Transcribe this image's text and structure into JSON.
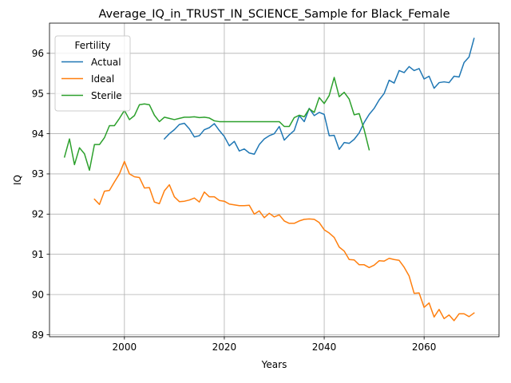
{
  "chart_data": {
    "type": "line",
    "title": "Average_IQ_in_TRUST_IN_SCIENCE_Sample for Black_Female",
    "xlabel": "Years",
    "ylabel": "IQ",
    "xlim": [
      1985,
      2075
    ],
    "ylim": [
      88.95,
      96.75
    ],
    "xticks": [
      2000,
      2020,
      2040,
      2060
    ],
    "yticks": [
      89,
      90,
      91,
      92,
      93,
      94,
      95,
      96
    ],
    "grid": true,
    "legend": {
      "title": "Fertility",
      "placement": "top-left"
    },
    "series": [
      {
        "name": "Actual",
        "color": "#1f77b4",
        "x": [
          2008,
          2009,
          2010,
          2011,
          2012,
          2013,
          2014,
          2015,
          2016,
          2017,
          2018,
          2019,
          2020,
          2021,
          2022,
          2023,
          2024,
          2025,
          2026,
          2027,
          2028,
          2029,
          2030,
          2031,
          2032,
          2033,
          2034,
          2035,
          2036,
          2037,
          2038,
          2039,
          2040,
          2041,
          2042,
          2043,
          2044,
          2045,
          2046,
          2047,
          2048,
          2049,
          2050,
          2051,
          2052,
          2053,
          2054,
          2055,
          2056,
          2057,
          2058,
          2059,
          2060,
          2061,
          2062,
          2063,
          2064,
          2065,
          2066,
          2067,
          2068,
          2069,
          2070
        ],
        "values": [
          93.87,
          94.0,
          94.1,
          94.23,
          94.26,
          94.12,
          93.92,
          93.95,
          94.1,
          94.15,
          94.25,
          94.08,
          93.93,
          93.7,
          93.81,
          93.57,
          93.62,
          93.52,
          93.49,
          93.73,
          93.87,
          93.95,
          94.0,
          94.18,
          93.84,
          93.97,
          94.08,
          94.45,
          94.3,
          94.63,
          94.45,
          94.53,
          94.48,
          93.95,
          93.96,
          93.61,
          93.78,
          93.76,
          93.86,
          94.02,
          94.28,
          94.48,
          94.63,
          94.84,
          95.0,
          95.33,
          95.26,
          95.57,
          95.52,
          95.67,
          95.57,
          95.62,
          95.36,
          95.43,
          95.13,
          95.27,
          95.29,
          95.27,
          95.43,
          95.41,
          95.77,
          95.91,
          96.37
        ]
      },
      {
        "name": "Ideal",
        "color": "#ff7f0e",
        "x": [
          1994,
          1995,
          1996,
          1997,
          1998,
          1999,
          2000,
          2001,
          2002,
          2003,
          2004,
          2005,
          2006,
          2007,
          2008,
          2009,
          2010,
          2011,
          2012,
          2013,
          2014,
          2015,
          2016,
          2017,
          2018,
          2019,
          2020,
          2021,
          2022,
          2023,
          2024,
          2025,
          2026,
          2027,
          2028,
          2029,
          2030,
          2031,
          2032,
          2033,
          2034,
          2035,
          2036,
          2037,
          2038,
          2039,
          2040,
          2041,
          2042,
          2043,
          2044,
          2045,
          2046,
          2047,
          2048,
          2049,
          2050,
          2051,
          2052,
          2053,
          2054,
          2055,
          2056,
          2057,
          2058,
          2059,
          2060,
          2061,
          2062,
          2063,
          2064,
          2065,
          2066,
          2067,
          2068,
          2069,
          2070
        ],
        "values": [
          92.37,
          92.24,
          92.57,
          92.59,
          92.8,
          93.0,
          93.31,
          93.0,
          92.93,
          92.91,
          92.65,
          92.66,
          92.3,
          92.26,
          92.58,
          92.73,
          92.43,
          92.31,
          92.32,
          92.35,
          92.4,
          92.3,
          92.55,
          92.43,
          92.43,
          92.34,
          92.32,
          92.25,
          92.23,
          92.21,
          92.21,
          92.22,
          92.0,
          92.08,
          91.91,
          92.02,
          91.93,
          91.98,
          91.83,
          91.77,
          91.77,
          91.83,
          91.87,
          91.88,
          91.87,
          91.79,
          91.61,
          91.53,
          91.42,
          91.18,
          91.08,
          90.87,
          90.86,
          90.74,
          90.74,
          90.67,
          90.73,
          90.84,
          90.83,
          90.9,
          90.87,
          90.85,
          90.68,
          90.46,
          90.03,
          90.04,
          89.68,
          89.79,
          89.44,
          89.63,
          89.4,
          89.49,
          89.35,
          89.52,
          89.52,
          89.45,
          89.54
        ]
      },
      {
        "name": "Sterile",
        "color": "#2ca02c",
        "x": [
          1988,
          1989,
          1990,
          1991,
          1992,
          1993,
          1994,
          1995,
          1996,
          1997,
          1998,
          1999,
          2000,
          2001,
          2002,
          2003,
          2004,
          2005,
          2006,
          2007,
          2008,
          2009,
          2010,
          2011,
          2012,
          2013,
          2014,
          2015,
          2016,
          2017,
          2018,
          2019,
          2020,
          2021,
          2022,
          2023,
          2024,
          2025,
          2026,
          2027,
          2028,
          2029,
          2030,
          2031,
          2032,
          2033,
          2034,
          2035,
          2036,
          2037,
          2038,
          2039,
          2040,
          2041,
          2042,
          2043,
          2044,
          2045,
          2046,
          2047,
          2048,
          2049
        ],
        "values": [
          93.42,
          93.87,
          93.23,
          93.65,
          93.5,
          93.09,
          93.73,
          93.73,
          93.9,
          94.2,
          94.2,
          94.38,
          94.58,
          94.35,
          94.45,
          94.72,
          94.74,
          94.72,
          94.46,
          94.3,
          94.41,
          94.38,
          94.35,
          94.38,
          94.41,
          94.41,
          94.42,
          94.4,
          94.41,
          94.39,
          94.32,
          94.3,
          94.3,
          94.3,
          94.3,
          94.3,
          94.3,
          94.3,
          94.3,
          94.3,
          94.3,
          94.3,
          94.3,
          94.3,
          94.18,
          94.18,
          94.4,
          94.46,
          94.42,
          94.62,
          94.53,
          94.9,
          94.75,
          94.95,
          95.4,
          94.92,
          95.03,
          94.86,
          94.47,
          94.5,
          94.1,
          93.6
        ]
      }
    ]
  }
}
